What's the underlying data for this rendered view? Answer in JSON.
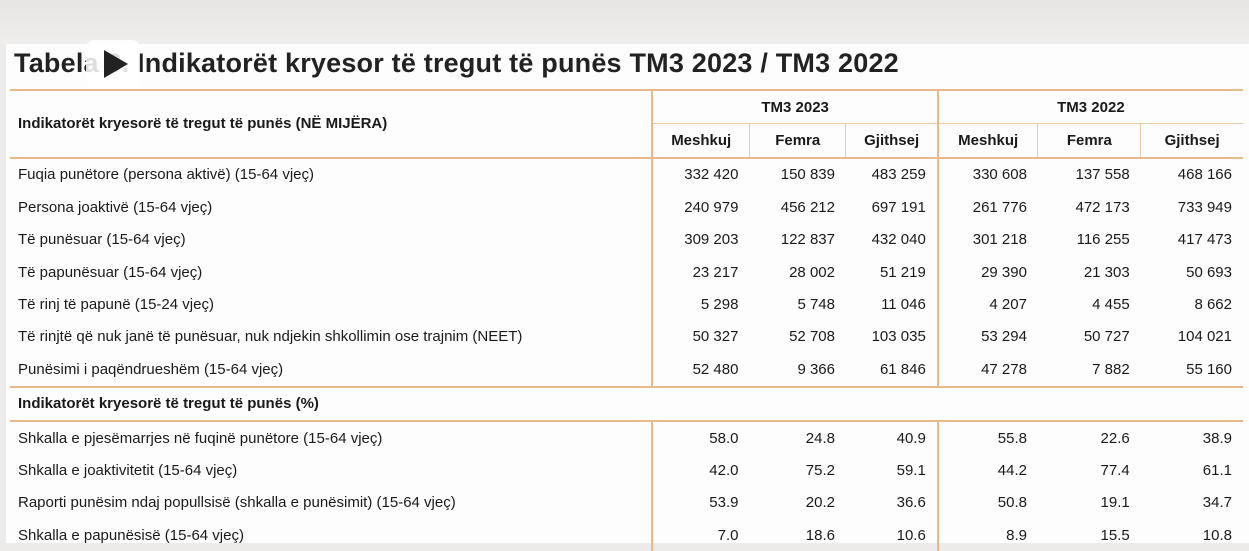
{
  "title": "Tabela 3. Indikatorët kryesor të tregut të punës TM3 2023 / TM3 2022",
  "header": {
    "row_label": "Indikatorët kryesorë të tregut të punës (NË MIJËRA)",
    "period1": "TM3 2023",
    "period2": "TM3 2022",
    "cols": [
      "Meshkuj",
      "Femra",
      "Gjithsej",
      "Meshkuj",
      "Femra",
      "Gjithsej"
    ]
  },
  "section1": [
    {
      "label": "Fuqia punëtore (persona aktivë) (15-64 vjeç)",
      "v": [
        "332 420",
        "150 839",
        "483 259",
        "330 608",
        "137 558",
        "468 166"
      ]
    },
    {
      "label": "Persona joaktivë (15-64 vjeç)",
      "v": [
        "240 979",
        "456 212",
        "697 191",
        "261 776",
        "472 173",
        "733 949"
      ]
    },
    {
      "label": "Të punësuar (15-64 vjeç)",
      "v": [
        "309 203",
        "122 837",
        "432 040",
        "301 218",
        "116 255",
        "417 473"
      ]
    },
    {
      "label": "Të papunësuar (15-64 vjeç)",
      "v": [
        "23 217",
        "28 002",
        "51 219",
        "29 390",
        "21 303",
        "50 693"
      ]
    },
    {
      "label": "Të rinj të papunë (15-24 vjeç)",
      "v": [
        "5 298",
        "5 748",
        "11 046",
        "4 207",
        "4 455",
        "8 662"
      ]
    },
    {
      "label": "Të rinjtë që nuk janë të punësuar, nuk ndjekin shkollimin ose trajnim (NEET)",
      "v": [
        "50 327",
        "52 708",
        "103 035",
        "53 294",
        "50 727",
        "104 021"
      ]
    },
    {
      "label": "Punësimi i paqëndrueshëm (15-64 vjeç)",
      "v": [
        "52 480",
        "9 366",
        "61 846",
        "47 278",
        "7 882",
        "55 160"
      ]
    }
  ],
  "section2_title": "Indikatorët kryesorë të tregut të punës (%)",
  "section2": [
    {
      "label": "Shkalla e pjesëmarrjes në fuqinë punëtore (15-64 vjeç)",
      "v": [
        "58.0",
        "24.8",
        "40.9",
        "55.8",
        "22.6",
        "38.9"
      ]
    },
    {
      "label": "Shkalla e joaktivitetit (15-64 vjeç)",
      "v": [
        "42.0",
        "75.2",
        "59.1",
        "44.2",
        "77.4",
        "61.1"
      ]
    },
    {
      "label": "Raporti punësim ndaj popullsisë (shkalla e punësimit) (15-64 vjeç)",
      "v": [
        "53.9",
        "20.2",
        "36.6",
        "50.8",
        "19.1",
        "34.7"
      ]
    },
    {
      "label": "Shkalla e papunësisë (15-64 vjeç)",
      "v": [
        "7.0",
        "18.6",
        "10.6",
        "8.9",
        "15.5",
        "10.8"
      ]
    }
  ]
}
